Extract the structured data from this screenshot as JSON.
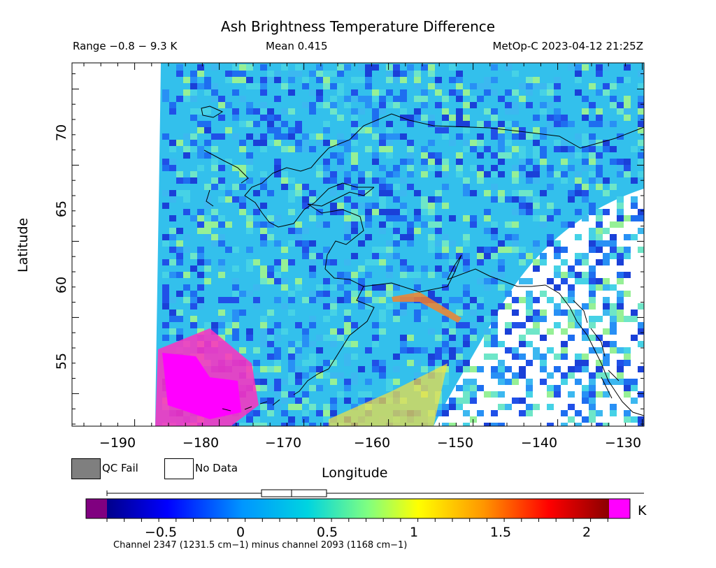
{
  "header": {
    "title": "Ash Brightness Temperature Difference",
    "range": "Range −0.8 − 9.3 K",
    "mean": "Mean 0.415",
    "satellite_time": "MetOp-C 2023-04-12 21:25Z"
  },
  "axes": {
    "x_label": "Longitude",
    "y_label": "Latitude",
    "x_ticks": [
      "−190",
      "−180",
      "−170",
      "−160",
      "−150",
      "−140",
      "−130"
    ],
    "y_ticks": [
      "55",
      "60",
      "65",
      "70"
    ]
  },
  "legend": {
    "qc_fail": "QC Fail",
    "no_data": "No Data",
    "qc_fail_color": "#7f7f7f",
    "no_data_color": "#ffffff"
  },
  "colorbar": {
    "ticks": [
      "−0.5",
      "0",
      "0.5",
      "1",
      "1.5",
      "2"
    ],
    "unit": "K",
    "caption": "Channel 2347 (1231.5 cm−1) minus channel 2093 (1168 cm−1)",
    "low_color": "#800080",
    "high_color": "#ff00ff"
  }
}
